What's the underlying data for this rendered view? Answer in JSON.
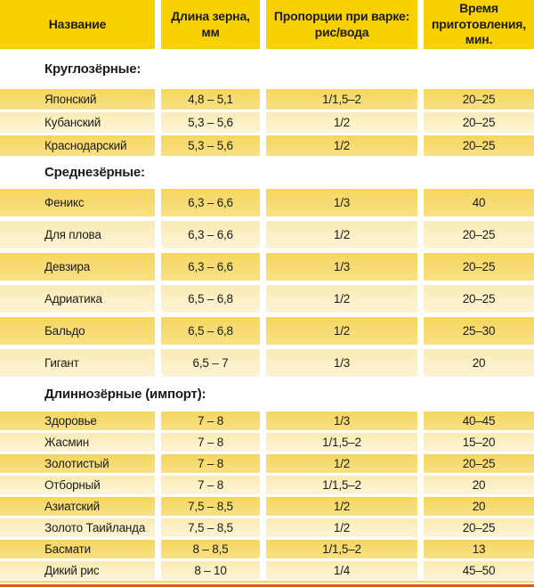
{
  "chart_data": {
    "type": "table",
    "columns": [
      "Название",
      "Длина зерна, мм",
      "Пропорции при варке: рис/вода",
      "Время приготовления, мин."
    ],
    "sections": [
      {
        "label": "Круглозёрные:",
        "rows": [
          [
            "Японский",
            "4,8 – 5,1",
            "1/1,5–2",
            "20–25"
          ],
          [
            "Кубанский",
            "5,3 – 5,6",
            "1/2",
            "20–25"
          ],
          [
            "Краснодарский",
            "5,3 – 5,6",
            "1/2",
            "20–25"
          ]
        ]
      },
      {
        "label": "Среднезёрные:",
        "rows": [
          [
            "Феникс",
            "6,3 – 6,6",
            "1/3",
            "40"
          ],
          [
            "Для плова",
            "6,3 – 6,6",
            "1/2",
            "20–25"
          ],
          [
            "Девзира",
            "6,3 – 6,6",
            "1/3",
            "20–25"
          ],
          [
            "Адриатика",
            "6,5 – 6,8",
            "1/2",
            "20–25"
          ],
          [
            "Бальдо",
            "6,5 – 6,8",
            "1/2",
            "25–30"
          ],
          [
            "Гигант",
            "6,5 – 7",
            "1/3",
            "20"
          ]
        ]
      },
      {
        "label": "Длиннозёрные (импорт):",
        "rows": [
          [
            "Здоровье",
            "7 – 8",
            "1/3",
            "40–45"
          ],
          [
            "Жасмин",
            "7 – 8",
            "1/1,5–2",
            "15–20"
          ],
          [
            "Золотистый",
            "7 – 8",
            "1/2",
            "20–25"
          ],
          [
            "Отборный",
            "7 – 8",
            "1/1,5–2",
            "20"
          ],
          [
            "Азиатский",
            "7,5 – 8,5",
            "1/2",
            "20"
          ],
          [
            "Золото Таийланда",
            "7,5 – 8,5",
            "1/2",
            "20–25"
          ],
          [
            "Басмати",
            "8 – 8,5",
            "1/1,5–2",
            "13"
          ],
          [
            "Дикий рис",
            "8 – 10",
            "1/4",
            "45–50"
          ]
        ]
      }
    ]
  },
  "colors": {
    "header_bg": "#F9D002",
    "row_dark_top": "#F5D65F",
    "row_dark_bottom": "#F9E186",
    "row_light_top": "#FAEBB3",
    "row_light_bottom": "#FDF4D7",
    "bottom_line_yellow": "#FFD83F",
    "bottom_line_orange": "#D85C1E",
    "text": "#1C1C1C",
    "separator": "#FFFFFF"
  }
}
